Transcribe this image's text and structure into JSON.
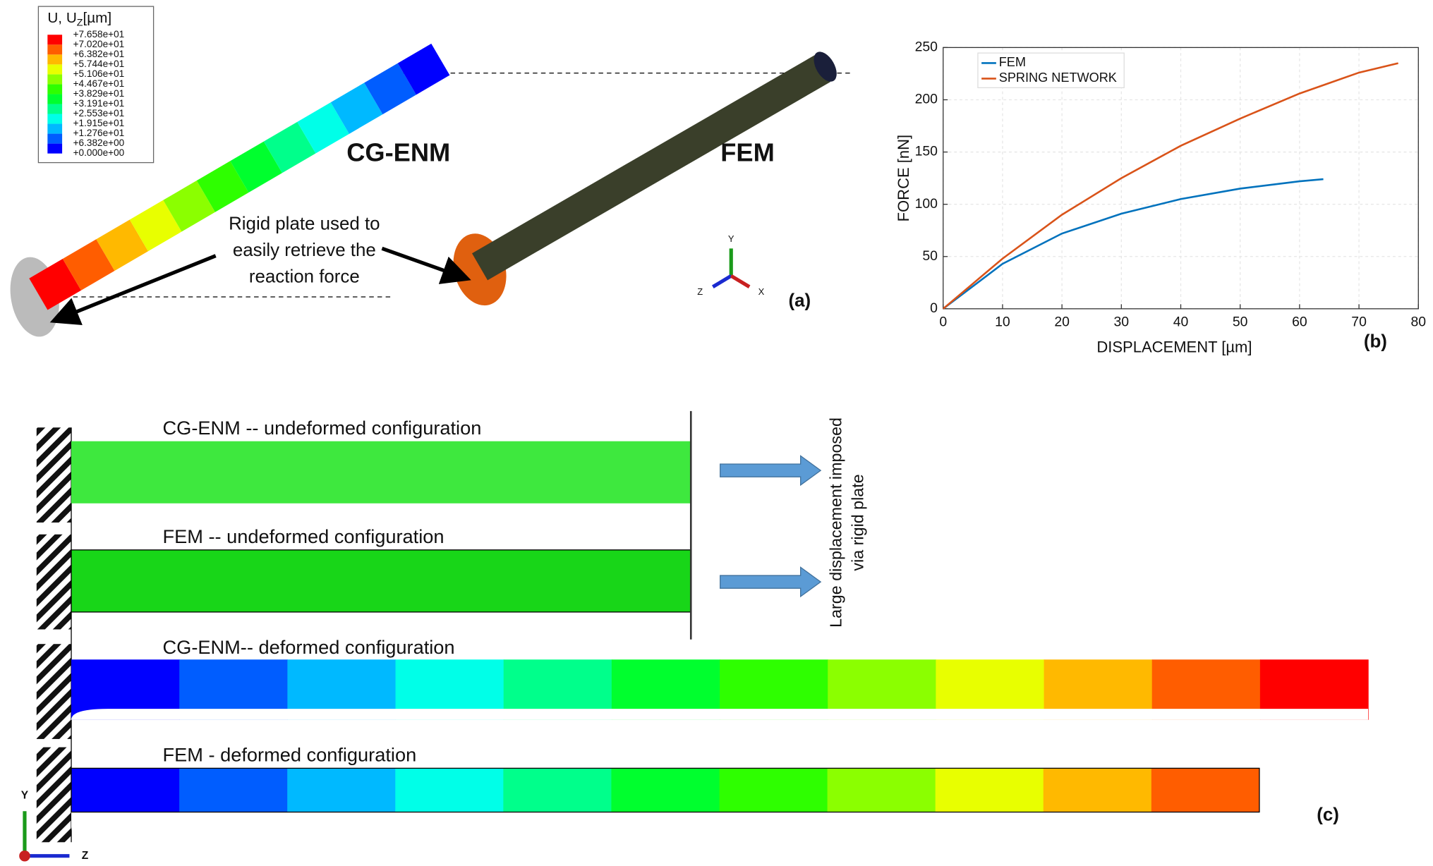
{
  "panel_a": {
    "legend_title": "U, U",
    "legend_subscript": "Z",
    "legend_unit": "[µm]",
    "legend_values": [
      "+7.658e+01",
      "+7.020e+01",
      "+6.382e+01",
      "+5.744e+01",
      "+5.106e+01",
      "+4.467e+01",
      "+3.829e+01",
      "+3.191e+01",
      "+2.553e+01",
      "+1.915e+01",
      "+1.276e+01",
      "+6.382e+00",
      "+0.000e+00"
    ],
    "legend_colors": [
      "#0000ff",
      "#005dff",
      "#00b9ff",
      "#00ffe8",
      "#00ff8b",
      "#00ff2e",
      "#2eff00",
      "#8bff00",
      "#e8ff00",
      "#ffb900",
      "#ff5d00",
      "#ff0000"
    ],
    "label_cg_enm": "CG-ENM",
    "label_fem": "FEM",
    "annotation": [
      "Rigid plate used to",
      "easily retrieve the",
      "reaction force"
    ],
    "triad": [
      "Y",
      "Z",
      "X"
    ],
    "panel_label": "(a)"
  },
  "chart_data": {
    "type": "line",
    "x_label": "DISPLACEMENT [µm]",
    "y_label": "FORCE [nN]",
    "x": [
      0,
      10,
      20,
      30,
      40,
      50,
      60,
      64,
      70,
      76.6
    ],
    "series": [
      {
        "name": "FEM",
        "color": "#0072bd",
        "values": [
          0,
          43,
          72,
          91,
          105,
          115,
          122,
          124,
          null,
          null
        ]
      },
      {
        "name": "SPRING NETWORK",
        "color": "#d95319",
        "values": [
          0,
          48,
          90,
          125,
          156,
          182,
          206,
          214,
          226,
          235
        ]
      }
    ],
    "xlim": [
      0,
      80
    ],
    "ylim": [
      0,
      250
    ],
    "xticks": [
      0,
      10,
      20,
      30,
      40,
      50,
      60,
      70,
      80
    ],
    "yticks": [
      0,
      50,
      100,
      150,
      200,
      250
    ],
    "grid": true,
    "legend": "upper-left",
    "panel_label": "(b)"
  },
  "panel_c": {
    "rows": [
      "CG-ENM -- undeformed configuration",
      "FEM -- undeformed configuration",
      "CG-ENM-- deformed configuration",
      "FEM - deformed configuration"
    ],
    "arrow_text": [
      "Large displacement imposed",
      "via rigid plate"
    ],
    "triad": [
      "Y",
      "Z"
    ],
    "panel_label": "(c)"
  }
}
